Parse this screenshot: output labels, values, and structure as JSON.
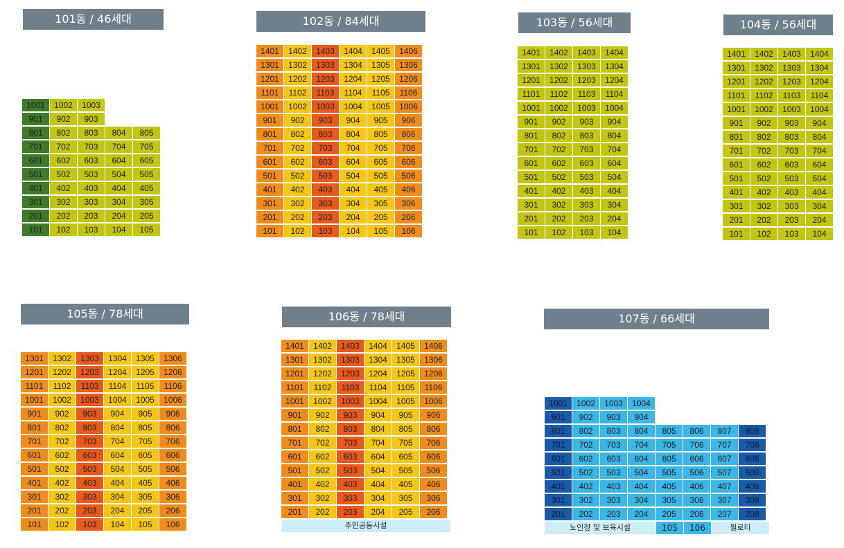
{
  "colors": {
    "dark_green": "#3f7a2b",
    "yellow_green": "#c2c512",
    "orange_red": "#e85a1b",
    "orange": "#f08c1e",
    "yellow": "#f5c518",
    "navy": "#1b5aa6",
    "light_blue": "#3cb6e6",
    "footer_bg": "#cdeef9"
  },
  "buildings": [
    {
      "title": "101동 / 46세대",
      "rows": [
        [
          "1001",
          "1002",
          "1003"
        ],
        [
          "901",
          "902",
          "903"
        ],
        [
          "801",
          "802",
          "803",
          "804",
          "805"
        ],
        [
          "701",
          "702",
          "703",
          "704",
          "705"
        ],
        [
          "601",
          "602",
          "603",
          "604",
          "605"
        ],
        [
          "501",
          "502",
          "503",
          "504",
          "505"
        ],
        [
          "401",
          "402",
          "403",
          "404",
          "405"
        ],
        [
          "301",
          "302",
          "303",
          "304",
          "305"
        ],
        [
          "201",
          "202",
          "203",
          "204",
          "205"
        ],
        [
          "101",
          "102",
          "103",
          "104",
          "105"
        ]
      ]
    },
    {
      "title": "102동 / 84세대",
      "rows": [
        [
          "1401",
          "1402",
          "1403",
          "1404",
          "1405",
          "1406"
        ],
        [
          "1301",
          "1302",
          "1303",
          "1304",
          "1305",
          "1306"
        ],
        [
          "1201",
          "1202",
          "1203",
          "1204",
          "1205",
          "1206"
        ],
        [
          "1101",
          "1102",
          "1103",
          "1104",
          "1105",
          "1106"
        ],
        [
          "1001",
          "1002",
          "1003",
          "1004",
          "1005",
          "1006"
        ],
        [
          "901",
          "902",
          "903",
          "904",
          "905",
          "906"
        ],
        [
          "801",
          "802",
          "803",
          "804",
          "805",
          "806"
        ],
        [
          "701",
          "702",
          "703",
          "704",
          "705",
          "706"
        ],
        [
          "601",
          "602",
          "603",
          "604",
          "605",
          "606"
        ],
        [
          "501",
          "502",
          "503",
          "504",
          "505",
          "506"
        ],
        [
          "401",
          "402",
          "403",
          "404",
          "405",
          "406"
        ],
        [
          "301",
          "302",
          "303",
          "304",
          "305",
          "306"
        ],
        [
          "201",
          "202",
          "203",
          "204",
          "205",
          "206"
        ],
        [
          "101",
          "102",
          "103",
          "104",
          "105",
          "106"
        ]
      ]
    },
    {
      "title": "103동 / 56세대",
      "rows": [
        [
          "1401",
          "1402",
          "1403",
          "1404"
        ],
        [
          "1301",
          "1302",
          "1303",
          "1304"
        ],
        [
          "1201",
          "1202",
          "1203",
          "1204"
        ],
        [
          "1101",
          "1102",
          "1103",
          "1104"
        ],
        [
          "1001",
          "1002",
          "1003",
          "1004"
        ],
        [
          "901",
          "902",
          "903",
          "904"
        ],
        [
          "801",
          "802",
          "803",
          "804"
        ],
        [
          "701",
          "702",
          "703",
          "704"
        ],
        [
          "601",
          "602",
          "603",
          "604"
        ],
        [
          "501",
          "502",
          "503",
          "504"
        ],
        [
          "401",
          "402",
          "403",
          "404"
        ],
        [
          "301",
          "302",
          "303",
          "304"
        ],
        [
          "201",
          "202",
          "203",
          "204"
        ],
        [
          "101",
          "102",
          "103",
          "104"
        ]
      ]
    },
    {
      "title": "104동 / 56세대",
      "rows": [
        [
          "1401",
          "1402",
          "1403",
          "1404"
        ],
        [
          "1301",
          "1302",
          "1303",
          "1304"
        ],
        [
          "1201",
          "1202",
          "1203",
          "1204"
        ],
        [
          "1101",
          "1102",
          "1103",
          "1104"
        ],
        [
          "1001",
          "1002",
          "1003",
          "1004"
        ],
        [
          "901",
          "902",
          "903",
          "904"
        ],
        [
          "801",
          "802",
          "803",
          "804"
        ],
        [
          "701",
          "702",
          "703",
          "704"
        ],
        [
          "601",
          "602",
          "603",
          "604"
        ],
        [
          "501",
          "502",
          "503",
          "504"
        ],
        [
          "401",
          "402",
          "403",
          "404"
        ],
        [
          "301",
          "302",
          "303",
          "304"
        ],
        [
          "201",
          "202",
          "203",
          "204"
        ],
        [
          "101",
          "102",
          "103",
          "104"
        ]
      ]
    },
    {
      "title": "105동 / 78세대",
      "rows": [
        [
          "1301",
          "1302",
          "1303",
          "1304",
          "1305",
          "1306"
        ],
        [
          "1201",
          "1202",
          "1203",
          "1204",
          "1205",
          "1206"
        ],
        [
          "1101",
          "1102",
          "1103",
          "1104",
          "1105",
          "1106"
        ],
        [
          "1001",
          "1002",
          "1003",
          "1004",
          "1005",
          "1006"
        ],
        [
          "901",
          "902",
          "903",
          "904",
          "905",
          "906"
        ],
        [
          "801",
          "802",
          "803",
          "804",
          "805",
          "806"
        ],
        [
          "701",
          "702",
          "703",
          "704",
          "705",
          "706"
        ],
        [
          "601",
          "602",
          "603",
          "604",
          "605",
          "606"
        ],
        [
          "501",
          "502",
          "503",
          "504",
          "505",
          "506"
        ],
        [
          "401",
          "402",
          "403",
          "404",
          "405",
          "406"
        ],
        [
          "301",
          "302",
          "303",
          "304",
          "305",
          "306"
        ],
        [
          "201",
          "202",
          "203",
          "204",
          "205",
          "206"
        ],
        [
          "101",
          "102",
          "103",
          "104",
          "105",
          "106"
        ]
      ]
    },
    {
      "title": "106동 / 78세대",
      "rows": [
        [
          "1401",
          "1402",
          "1403",
          "1404",
          "1405",
          "1406"
        ],
        [
          "1301",
          "1302",
          "1303",
          "1304",
          "1305",
          "1306"
        ],
        [
          "1201",
          "1202",
          "1203",
          "1204",
          "1205",
          "1206"
        ],
        [
          "1101",
          "1102",
          "1103",
          "1104",
          "1105",
          "1106"
        ],
        [
          "1001",
          "1002",
          "1003",
          "1004",
          "1005",
          "1006"
        ],
        [
          "901",
          "902",
          "903",
          "904",
          "905",
          "906"
        ],
        [
          "801",
          "802",
          "803",
          "804",
          "805",
          "806"
        ],
        [
          "701",
          "702",
          "703",
          "704",
          "705",
          "706"
        ],
        [
          "601",
          "602",
          "603",
          "604",
          "605",
          "606"
        ],
        [
          "501",
          "502",
          "503",
          "504",
          "505",
          "506"
        ],
        [
          "401",
          "402",
          "403",
          "404",
          "405",
          "406"
        ],
        [
          "301",
          "302",
          "303",
          "304",
          "305",
          "306"
        ],
        [
          "201",
          "202",
          "203",
          "204",
          "205",
          "206"
        ]
      ],
      "footer": "주민공동시설"
    },
    {
      "title": "107동 / 66세대",
      "rows": [
        [
          "1001",
          "1002",
          "1003",
          "1004"
        ],
        [
          "901",
          "902",
          "903",
          "904"
        ],
        [
          "801",
          "802",
          "803",
          "804",
          "805",
          "806",
          "807",
          "808"
        ],
        [
          "701",
          "702",
          "703",
          "704",
          "705",
          "706",
          "707",
          "708"
        ],
        [
          "601",
          "602",
          "603",
          "604",
          "605",
          "606",
          "607",
          "608"
        ],
        [
          "501",
          "502",
          "503",
          "504",
          "505",
          "506",
          "507",
          "508"
        ],
        [
          "401",
          "402",
          "403",
          "404",
          "405",
          "406",
          "407",
          "408"
        ],
        [
          "301",
          "302",
          "303",
          "304",
          "305",
          "306",
          "307",
          "308"
        ],
        [
          "201",
          "202",
          "203",
          "204",
          "205",
          "206",
          "207",
          "208"
        ]
      ],
      "footer_left": "노인정 및 보육시설",
      "footer_units": [
        "105",
        "106"
      ],
      "footer_right": "필로티"
    }
  ]
}
